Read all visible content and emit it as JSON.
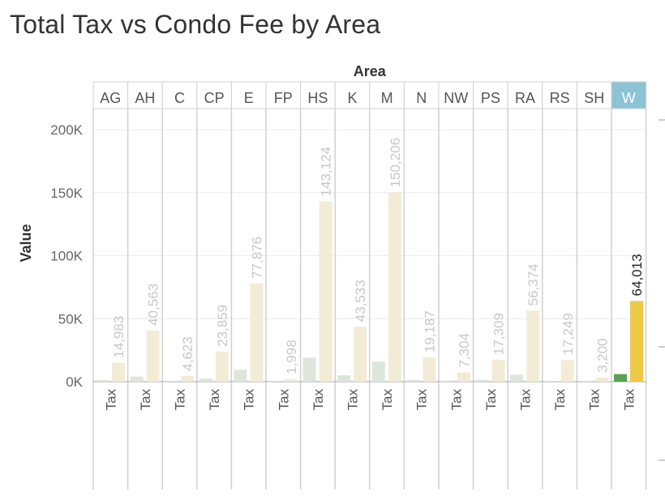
{
  "title": "Total Tax vs Condo Fee by Area",
  "chart_data": {
    "type": "bar",
    "title": "Total Tax vs Condo Fee by Area",
    "column_header": "Area",
    "ylabel": "Value",
    "ylim": [
      0,
      220000
    ],
    "yticks": [
      {
        "value": 0,
        "label": "0K"
      },
      {
        "value": 50000,
        "label": "50K"
      },
      {
        "value": 100000,
        "label": "100K"
      },
      {
        "value": 150000,
        "label": "150K"
      },
      {
        "value": 200000,
        "label": "200K"
      }
    ],
    "x_label": "Tax",
    "highlighted_area": "W",
    "colors": {
      "condo_fee": "#dce6da",
      "tax": "#f2ebd6",
      "condo_fee_highlight": "#59a14f",
      "tax_highlight": "#edc948",
      "header_highlight": "#8cc4d6",
      "muted_label": "#c8c8c8",
      "highlight_label": "#222222"
    },
    "areas": [
      {
        "area": "AG",
        "condo_fee": 1200,
        "tax": 14983,
        "tax_label": "14,983"
      },
      {
        "area": "AH",
        "condo_fee": 4000,
        "tax": 40563,
        "tax_label": "40,563"
      },
      {
        "area": "C",
        "condo_fee": 500,
        "tax": 4623,
        "tax_label": "4,623"
      },
      {
        "area": "CP",
        "condo_fee": 2500,
        "tax": 23859,
        "tax_label": "23,859"
      },
      {
        "area": "E",
        "condo_fee": 9500,
        "tax": 77876,
        "tax_label": "77,876"
      },
      {
        "area": "FP",
        "condo_fee": 300,
        "tax": 1998,
        "tax_label": "1,998"
      },
      {
        "area": "HS",
        "condo_fee": 19000,
        "tax": 143124,
        "tax_label": "143,124"
      },
      {
        "area": "K",
        "condo_fee": 5000,
        "tax": 43533,
        "tax_label": "43,533"
      },
      {
        "area": "M",
        "condo_fee": 16000,
        "tax": 150206,
        "tax_label": "150,206"
      },
      {
        "area": "N",
        "condo_fee": 1500,
        "tax": 19187,
        "tax_label": "19,187"
      },
      {
        "area": "NW",
        "condo_fee": 800,
        "tax": 7304,
        "tax_label": "7,304"
      },
      {
        "area": "PS",
        "condo_fee": 1500,
        "tax": 17309,
        "tax_label": "17,309"
      },
      {
        "area": "RA",
        "condo_fee": 5500,
        "tax": 56374,
        "tax_label": "56,374"
      },
      {
        "area": "RS",
        "condo_fee": 600,
        "tax": 17249,
        "tax_label": "17,249"
      },
      {
        "area": "SH",
        "condo_fee": 300,
        "tax": 3200,
        "tax_label": "3,200"
      },
      {
        "area": "W",
        "condo_fee": 6000,
        "tax": 64013,
        "tax_label": "64,013"
      }
    ]
  }
}
